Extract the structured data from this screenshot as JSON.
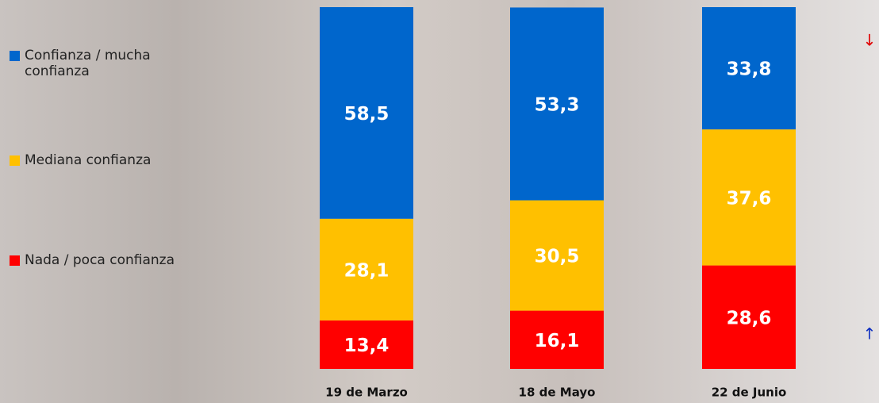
{
  "chart_data": {
    "type": "stacked-bar",
    "categories": [
      "19 de Marzo",
      "18 de Mayo",
      "22 de Junio"
    ],
    "series": [
      {
        "name": "Nada / poca confianza",
        "color": "#ff0000",
        "values": [
          13.4,
          16.1,
          28.6
        ],
        "value_labels": [
          "13,4",
          "16,1",
          "28,6"
        ]
      },
      {
        "name": "Mediana confianza",
        "color": "#ffc000",
        "values": [
          28.1,
          30.5,
          37.6
        ],
        "value_labels": [
          "28,1",
          "30,5",
          "37,6"
        ]
      },
      {
        "name": "Confianza / mucha confianza",
        "color": "#0066cc",
        "values": [
          58.5,
          53.3,
          33.8
        ],
        "value_labels": [
          "58,5",
          "53,3",
          "33,8"
        ]
      }
    ]
  }
}
